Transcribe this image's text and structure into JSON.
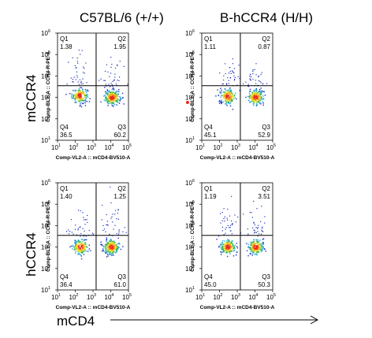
{
  "column_titles": [
    "C57BL/6 (+/+)",
    "B-hCCR4 (H/H)"
  ],
  "row_titles": [
    "mCCR4",
    "hCCR4"
  ],
  "x_title": "mCD4",
  "chart_data": [
    {
      "type": "scatter",
      "xlabel": "Comp-VL2-A :: mCD4-BV510-A",
      "ylabel": "Comp-BL2-A :: CCR4-R-PE-A",
      "xscale": "log",
      "yscale": "log",
      "xlim": [
        10,
        100000
      ],
      "ylim": [
        10,
        1000000
      ],
      "x_ticks": [
        "10",
        "10",
        "10",
        "10",
        "10"
      ],
      "x_tick_exp": [
        "1",
        "2",
        "3",
        "4",
        "5"
      ],
      "y_ticks": [
        "10",
        "10",
        "10",
        "10",
        "10",
        "10"
      ],
      "y_tick_exp": [
        "1",
        "2",
        "3",
        "4",
        "5",
        "6"
      ],
      "gate": {
        "x": 1500,
        "y": 3500
      },
      "quadrants": [
        {
          "name": "Q1",
          "value": "1.38"
        },
        {
          "name": "Q2",
          "value": "1.95"
        },
        {
          "name": "Q3",
          "value": "60.2"
        },
        {
          "name": "Q4",
          "value": "36.5"
        }
      ],
      "populations": [
        {
          "x": 180,
          "y": 1200,
          "count": 180
        },
        {
          "x": 12000,
          "y": 1000,
          "count": 250
        }
      ]
    },
    {
      "type": "scatter",
      "xlabel": "Comp-VL2-A :: mCD4-BV510-A",
      "ylabel": "Comp-BL2-A :: CCR4-R-PE-A",
      "xscale": "log",
      "yscale": "log",
      "xlim": [
        10,
        100000
      ],
      "ylim": [
        10,
        1000000
      ],
      "x_ticks": [
        "10",
        "10",
        "10",
        "10",
        "10"
      ],
      "x_tick_exp": [
        "1",
        "2",
        "3",
        "4",
        "5"
      ],
      "y_ticks": [
        "10",
        "10",
        "10",
        "10",
        "10",
        "10"
      ],
      "y_tick_exp": [
        "1",
        "2",
        "3",
        "4",
        "5",
        "6"
      ],
      "gate": {
        "x": 1500,
        "y": 3500
      },
      "quadrants": [
        {
          "name": "Q1",
          "value": "1.11"
        },
        {
          "name": "Q2",
          "value": "0.87"
        },
        {
          "name": "Q3",
          "value": "52.9"
        },
        {
          "name": "Q4",
          "value": "45.1"
        }
      ],
      "populations": [
        {
          "x": 300,
          "y": 1100,
          "count": 200
        },
        {
          "x": 11000,
          "y": 1000,
          "count": 230
        }
      ]
    },
    {
      "type": "scatter",
      "xlabel": "Comp-VL2-A :: mCD4-BV510-A",
      "ylabel": "Comp-BL2-A :: CCR4-R-PE-A",
      "xscale": "log",
      "yscale": "log",
      "xlim": [
        10,
        100000
      ],
      "ylim": [
        10,
        1000000
      ],
      "x_ticks": [
        "10",
        "10",
        "10",
        "10",
        "10"
      ],
      "x_tick_exp": [
        "1",
        "2",
        "3",
        "4",
        "5"
      ],
      "y_ticks": [
        "10",
        "10",
        "10",
        "10",
        "10",
        "10"
      ],
      "y_tick_exp": [
        "1",
        "2",
        "3",
        "4",
        "5",
        "6"
      ],
      "gate": {
        "x": 1500,
        "y": 3500
      },
      "quadrants": [
        {
          "name": "Q1",
          "value": "1.40"
        },
        {
          "name": "Q2",
          "value": "1.25"
        },
        {
          "name": "Q3",
          "value": "61.0"
        },
        {
          "name": "Q4",
          "value": "36.4"
        }
      ],
      "populations": [
        {
          "x": 200,
          "y": 1000,
          "count": 180
        },
        {
          "x": 11000,
          "y": 1000,
          "count": 250
        }
      ]
    },
    {
      "type": "scatter",
      "xlabel": "Comp-VL2-A :: mCD4-BV510-A",
      "ylabel": "Comp-BL2-A :: CCR4-R-PE-A",
      "xscale": "log",
      "yscale": "log",
      "xlim": [
        10,
        100000
      ],
      "ylim": [
        10,
        1000000
      ],
      "x_ticks": [
        "10",
        "10",
        "10",
        "10",
        "10"
      ],
      "x_tick_exp": [
        "1",
        "2",
        "3",
        "4",
        "5"
      ],
      "y_ticks": [
        "10",
        "10",
        "10",
        "10",
        "10",
        "10"
      ],
      "y_tick_exp": [
        "1",
        "2",
        "3",
        "4",
        "5",
        "6"
      ],
      "gate": {
        "x": 1500,
        "y": 3500
      },
      "quadrants": [
        {
          "name": "Q1",
          "value": "1.19"
        },
        {
          "name": "Q2",
          "value": "3.51"
        },
        {
          "name": "Q3",
          "value": "50.3"
        },
        {
          "name": "Q4",
          "value": "45.0"
        }
      ],
      "populations": [
        {
          "x": 300,
          "y": 1000,
          "count": 200
        },
        {
          "x": 11000,
          "y": 1000,
          "count": 230
        }
      ]
    }
  ]
}
